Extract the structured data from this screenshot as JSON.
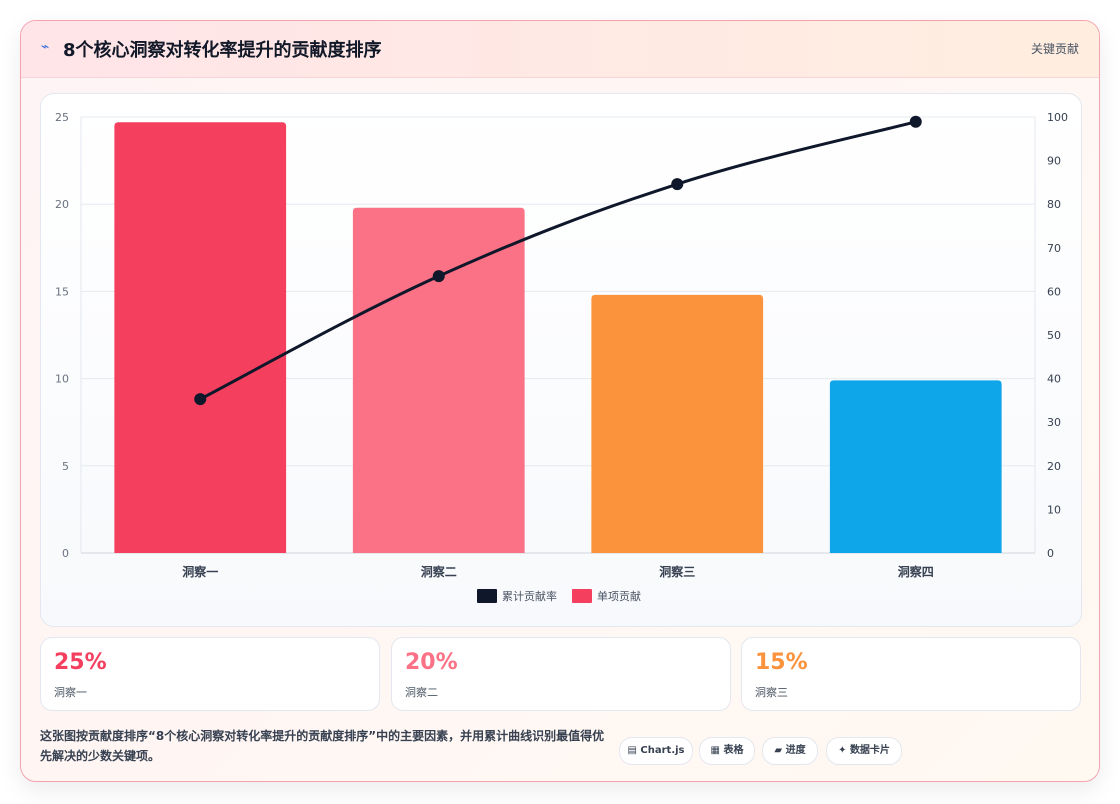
{
  "header": {
    "icon": "lightning-icon",
    "title": "8个核心洞察对转化率提升的贡献度排序",
    "badge": "关键贡献"
  },
  "chart_data": {
    "type": "bar",
    "categories": [
      "洞察一",
      "洞察二",
      "洞察三",
      "洞察四"
    ],
    "series": [
      {
        "name": "单项贡献",
        "type": "bar",
        "axis": "left",
        "values": [
          24.7,
          19.8,
          14.8,
          9.9
        ],
        "colors": [
          "#f43f5e",
          "#fb7185",
          "#fb923c",
          "#0ea5e9"
        ]
      },
      {
        "name": "累计贡献率",
        "type": "line",
        "axis": "right",
        "values": [
          35.3,
          63.5,
          84.6,
          98.9
        ],
        "color": "#0f172a"
      }
    ],
    "y_left": {
      "min": 0,
      "max": 25,
      "ticks": [
        "0",
        "5",
        "10",
        "15",
        "20",
        "25"
      ]
    },
    "y_right": {
      "min": 0,
      "max": 100,
      "ticks": [
        "0",
        "10",
        "20",
        "30",
        "40",
        "50",
        "60",
        "70",
        "80",
        "90",
        "100"
      ]
    },
    "legend": [
      "累计贡献率",
      "单项贡献"
    ],
    "legend_position": "bottom",
    "grid": true
  },
  "stats": [
    {
      "value": "25%",
      "label": "洞察一",
      "color": "#f43f5e"
    },
    {
      "value": "20%",
      "label": "洞察二",
      "color": "#fb7185"
    },
    {
      "value": "15%",
      "label": "洞察三",
      "color": "#fb923c"
    }
  ],
  "footer": {
    "description": "这张图按贡献度排序“8个核心洞察对转化率提升的贡献度排序”中的主要因素，并用累计曲线识别最值得优先解决的少数关键项。",
    "tags": [
      {
        "icon": "chart-icon",
        "glyph": "▤",
        "label": "Chart.js"
      },
      {
        "icon": "table-icon",
        "glyph": "▦",
        "label": "表格"
      },
      {
        "icon": "progress-icon",
        "glyph": "▰",
        "label": "进度"
      },
      {
        "icon": "card-icon",
        "glyph": "✦",
        "label": "数据卡片"
      }
    ]
  }
}
